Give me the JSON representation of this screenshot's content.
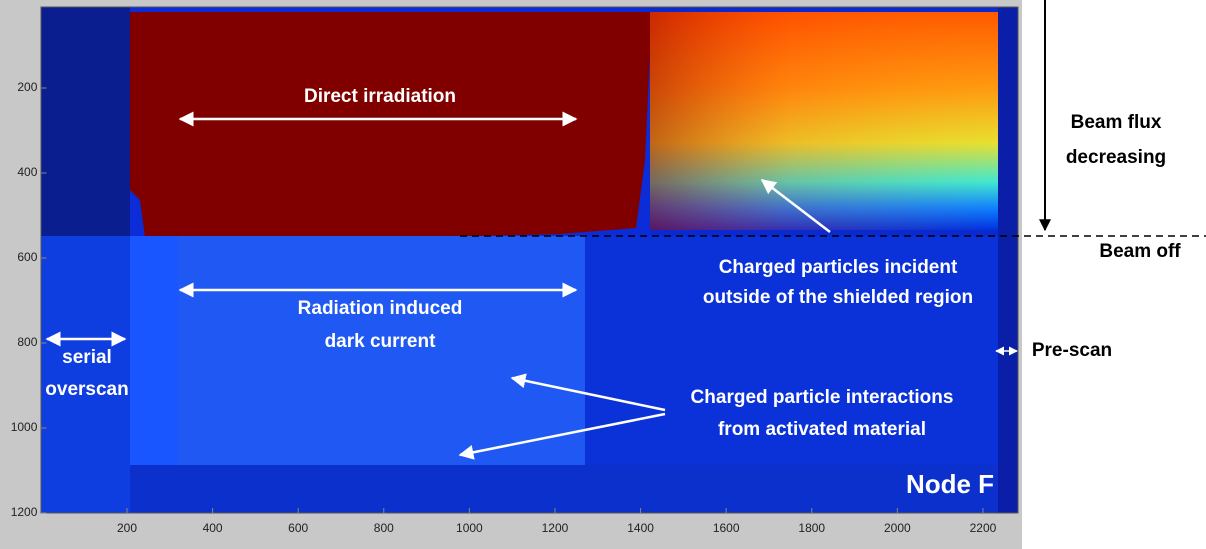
{
  "chart_data": {
    "type": "image",
    "xlim": [
      0,
      2280
    ],
    "ylim": [
      10,
      1200
    ],
    "y_reversed": true,
    "xticks": [
      200,
      400,
      600,
      800,
      1000,
      1200,
      1400,
      1600,
      1800,
      2000,
      2200
    ],
    "yticks": [
      200,
      400,
      600,
      800,
      1000,
      1200
    ],
    "annotations": [
      {
        "lines": [
          "Direct irradiation"
        ]
      },
      {
        "lines": [
          "Radiation induced",
          "dark current"
        ]
      },
      {
        "lines": [
          "serial",
          "overscan"
        ]
      },
      {
        "lines": [
          "Charged particles incident",
          "outside of the shielded region"
        ]
      },
      {
        "lines": [
          "Charged particle interactions",
          "from activated material"
        ]
      },
      {
        "lines": [
          "Node F"
        ]
      },
      {
        "lines": [
          "Beam flux",
          "decreasing"
        ]
      },
      {
        "lines": [
          "Beam off"
        ]
      },
      {
        "lines": [
          "Pre-scan"
        ]
      }
    ]
  }
}
